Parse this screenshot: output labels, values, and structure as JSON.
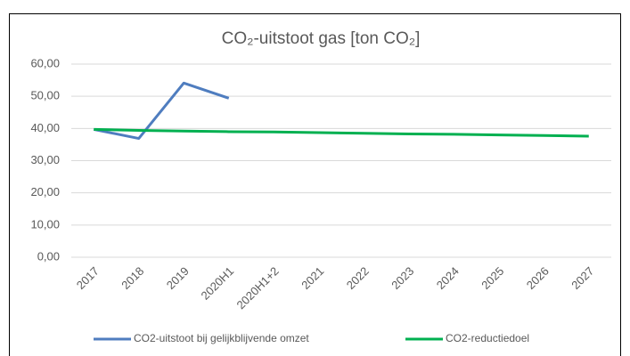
{
  "chart_data": {
    "type": "line",
    "title": "CO₂-uitstoot gas [ton CO₂]",
    "categories": [
      "2017",
      "2018",
      "2019",
      "2020H1",
      "2020H1+2",
      "2021",
      "2022",
      "2023",
      "2024",
      "2025",
      "2026",
      "2027"
    ],
    "series": [
      {
        "name": "CO2-uitstoot bij gelijkblijvende omzet",
        "color": "#4f7dbf",
        "values": [
          39.7,
          36.9,
          54.1,
          49.4,
          null,
          null,
          null,
          null,
          null,
          null,
          null,
          null
        ]
      },
      {
        "name": "CO2-reductiedoel",
        "color": "#00b050",
        "values": [
          39.7,
          39.4,
          39.2,
          39.0,
          38.9,
          38.7,
          38.5,
          38.3,
          38.2,
          38.0,
          37.8,
          37.6
        ]
      }
    ],
    "ylim": [
      0,
      60
    ],
    "yticks": [
      {
        "value": 0,
        "label": "0,00"
      },
      {
        "value": 10,
        "label": "10,00"
      },
      {
        "value": 20,
        "label": "20,00"
      },
      {
        "value": 30,
        "label": "30,00"
      },
      {
        "value": 40,
        "label": "40,00"
      },
      {
        "value": 50,
        "label": "50,00"
      },
      {
        "value": 60,
        "label": "60,00"
      }
    ],
    "grid": true,
    "legend": "bottom"
  }
}
